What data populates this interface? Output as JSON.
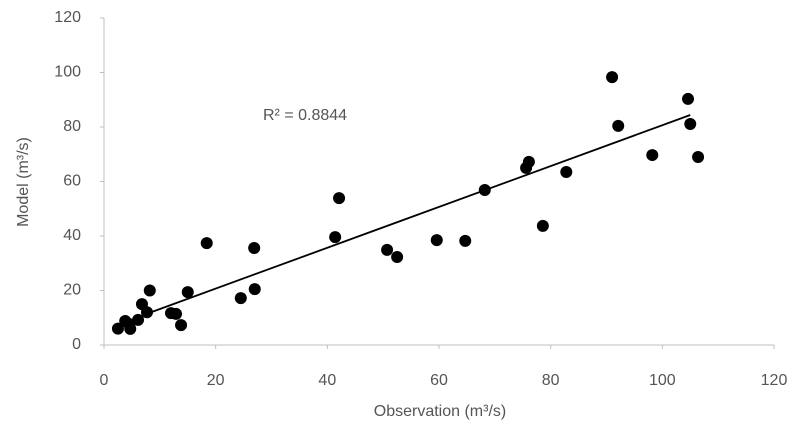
{
  "chart_data": {
    "type": "scatter",
    "xlabel": "Observation (m³/s)",
    "ylabel": "Model (m³/s)",
    "annotation": "R² = 0.8844",
    "xlim": [
      0,
      120
    ],
    "xticks": [
      0,
      20,
      40,
      60,
      80,
      100,
      120
    ],
    "ylim": [
      0,
      120
    ],
    "yticks": [
      0,
      20,
      40,
      60,
      80,
      100,
      120
    ],
    "color": "#000000",
    "x": [
      2.5,
      3.8,
      4.7,
      4.5,
      6.1,
      6.8,
      7.7,
      8.2,
      12,
      12.9,
      13.8,
      15,
      18.4,
      24.5,
      26.9,
      27,
      41.4,
      42.1,
      50.7,
      52.5,
      59.6,
      64.7,
      68.2,
      75.6,
      76.1,
      78.6,
      82.8,
      91,
      92.1,
      98.2,
      104.6,
      105,
      106.4
    ],
    "y": [
      6,
      8.8,
      5.9,
      7.7,
      9.2,
      15,
      12,
      20,
      11.7,
      11.4,
      7.3,
      19.4,
      37.4,
      17.2,
      35.6,
      20.5,
      39.6,
      53.9,
      34.9,
      32.3,
      38.5,
      38.2,
      56.9,
      65,
      67.2,
      43.7,
      63.5,
      98.3,
      80.4,
      69.7,
      90.3,
      81.1,
      69
    ],
    "trendline": {
      "color": "#000000",
      "x": [
        8,
        105
      ],
      "y": [
        11.7,
        84.4
      ]
    }
  }
}
